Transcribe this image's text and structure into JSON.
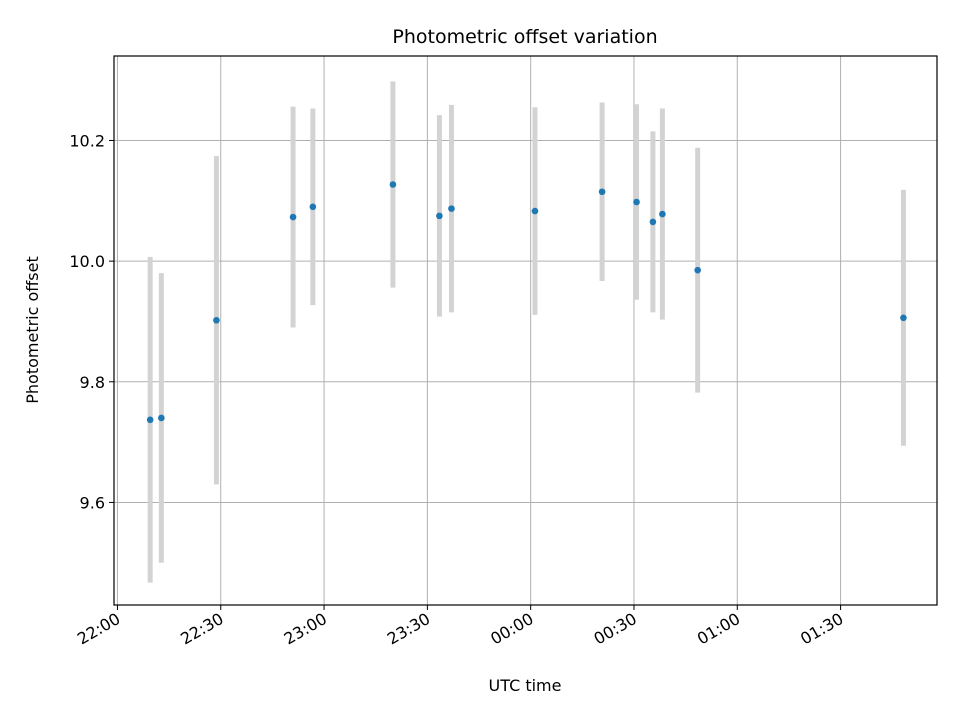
{
  "chart_data": {
    "type": "scatter",
    "title": "Photometric offset variation",
    "xlabel": "UTC time",
    "ylabel": "Photometric offset",
    "x_ticks": [
      "22:00",
      "22:30",
      "23:00",
      "23:30",
      "00:00",
      "00:30",
      "01:00",
      "01:30"
    ],
    "x_tick_times": [
      "2000-01-01T22:00",
      "2000-01-01T22:30",
      "2000-01-01T23:00",
      "2000-01-01T23:30",
      "2000-01-02T00:00",
      "2000-01-02T00:30",
      "2000-01-02T01:00",
      "2000-01-02T01:30"
    ],
    "xlim": [
      "2000-01-01T21:59",
      "2000-01-02T01:58"
    ],
    "y_ticks": [
      "9.6",
      "9.8",
      "10.0",
      "10.2"
    ],
    "ylim": [
      9.43,
      10.34
    ],
    "grid": true,
    "colors": {
      "point": "#1f77b4",
      "errorbar": "#d3d3d3",
      "grid": "#b0b0b0"
    },
    "points": [
      {
        "x": "2000-01-01T22:09:30",
        "y": 9.737,
        "err": 0.27
      },
      {
        "x": "2000-01-01T22:12:45",
        "y": 9.74,
        "err": 0.24
      },
      {
        "x": "2000-01-01T22:28:45",
        "y": 9.902,
        "err": 0.272
      },
      {
        "x": "2000-01-01T22:51:00",
        "y": 10.073,
        "err": 0.183
      },
      {
        "x": "2000-01-01T22:56:45",
        "y": 10.09,
        "err": 0.163
      },
      {
        "x": "2000-01-01T23:20:00",
        "y": 10.127,
        "err": 0.171
      },
      {
        "x": "2000-01-01T23:33:30",
        "y": 10.075,
        "err": 0.167
      },
      {
        "x": "2000-01-01T23:37:00",
        "y": 10.087,
        "err": 0.172
      },
      {
        "x": "2000-01-02T00:01:15",
        "y": 10.083,
        "err": 0.172
      },
      {
        "x": "2000-01-02T00:20:45",
        "y": 10.115,
        "err": 0.148
      },
      {
        "x": "2000-01-02T00:30:45",
        "y": 10.098,
        "err": 0.162
      },
      {
        "x": "2000-01-02T00:35:30",
        "y": 10.065,
        "err": 0.15
      },
      {
        "x": "2000-01-02T00:38:15",
        "y": 10.078,
        "err": 0.175
      },
      {
        "x": "2000-01-02T00:48:30",
        "y": 9.985,
        "err": 0.203
      },
      {
        "x": "2000-01-02T01:48:15",
        "y": 9.906,
        "err": 0.212
      }
    ]
  }
}
